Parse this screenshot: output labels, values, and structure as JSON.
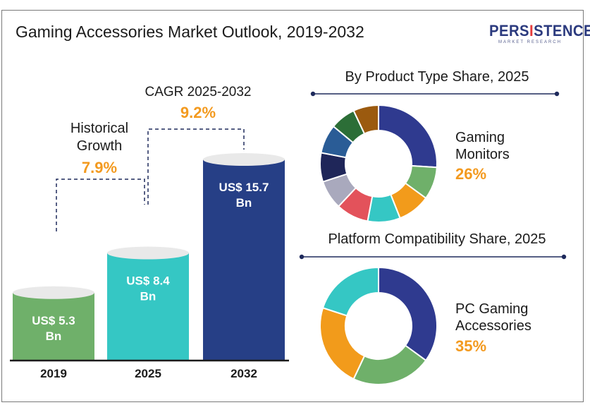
{
  "title": "Gaming Accessories Market Outlook, 2019-2032",
  "logo": {
    "name_pre": "PERS",
    "name_i": "I",
    "name_post": "STENCE",
    "tagline": "MARKET RESEARCH"
  },
  "colors": {
    "bar_2019": "#6fb06a",
    "bar_2025": "#35c7c4",
    "bar_2032": "#263f86",
    "accent": "#f39a1f",
    "navy": "#1e2a5c"
  },
  "annotations": {
    "historical_label_1": "Historical",
    "historical_label_2": "Growth",
    "historical_value": "7.9%",
    "cagr_label": "CAGR 2025-2032",
    "cagr_value": "9.2%"
  },
  "product_panel": {
    "title": "By Product Type Share, 2025",
    "label_1": "Gaming",
    "label_2": "Monitors",
    "pct": "26%"
  },
  "platform_panel": {
    "title": "Platform Compatibility Share, 2025",
    "label_1": "PC Gaming",
    "label_2": "Accessories",
    "pct": "35%"
  },
  "chart_data": [
    {
      "type": "bar",
      "categories": [
        "2019",
        "2025",
        "2032"
      ],
      "values": [
        5.3,
        8.4,
        15.7
      ],
      "data_labels": [
        [
          "US$ 5.3",
          "Bn"
        ],
        [
          "US$ 8.4",
          "Bn"
        ],
        [
          "US$ 15.7",
          "Bn"
        ]
      ],
      "title": "",
      "xlabel": "",
      "ylabel": ""
    },
    {
      "type": "pie",
      "title": "By Product Type Share, 2025",
      "values": [
        26,
        9,
        9,
        9,
        9,
        8,
        8,
        8,
        7,
        7
      ],
      "colors": [
        "#2f3a8f",
        "#6fb06a",
        "#f29b1b",
        "#35c7c4",
        "#e3525b",
        "#a9a9bd",
        "#1f2659",
        "#2a5c96",
        "#2c6e37",
        "#9b5a0f"
      ],
      "highlight": {
        "label": "Gaming Monitors",
        "value": 26
      }
    },
    {
      "type": "pie",
      "title": "Platform Compatibility Share, 2025",
      "values": [
        35,
        22,
        23,
        20
      ],
      "colors": [
        "#2f3a8f",
        "#6fb06a",
        "#f29b1b",
        "#35c7c4"
      ],
      "highlight": {
        "label": "PC Gaming Accessories",
        "value": 35
      }
    }
  ]
}
